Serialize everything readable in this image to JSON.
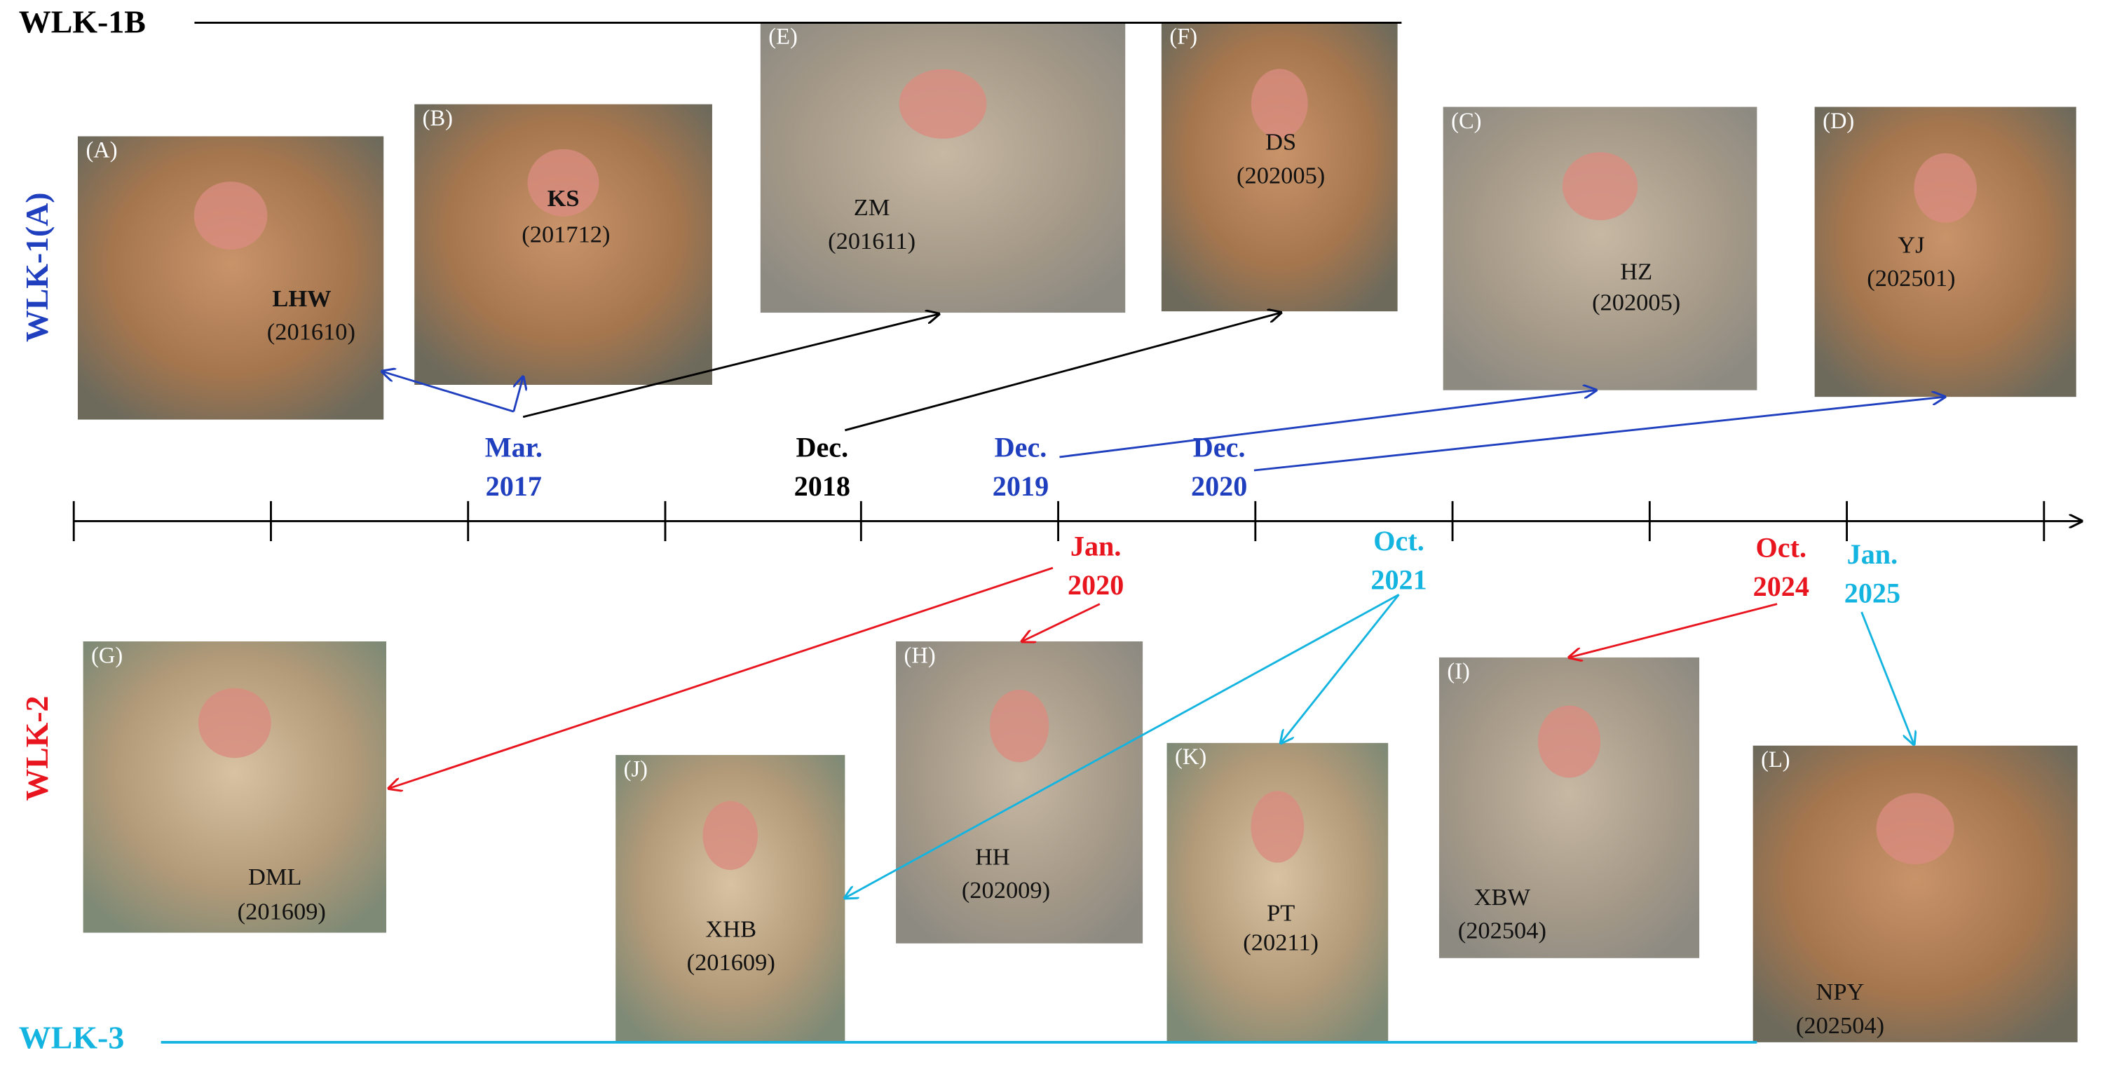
{
  "groups": [
    {
      "label": "WLK-1B"
    },
    {
      "label": "WLK-1(A)"
    },
    {
      "label": "WLK-2"
    },
    {
      "label": "WLK-3"
    }
  ],
  "dates": [
    {
      "month": "Mar.",
      "year": "2017"
    },
    {
      "month": "Dec.",
      "year": "2018"
    },
    {
      "month": "Dec.",
      "year": "2019"
    },
    {
      "month": "Dec.",
      "year": "2020"
    },
    {
      "month": "Jan.",
      "year": "2020"
    },
    {
      "month": "Oct.",
      "year": "2021"
    },
    {
      "month": "Oct.",
      "year": "2024"
    },
    {
      "month": "Jan.",
      "year": "2025"
    }
  ],
  "photos": [
    {
      "panel": "(A)",
      "name": "LHW",
      "code": "(201610)"
    },
    {
      "panel": "(B)",
      "name": "KS",
      "code": "(201712)"
    },
    {
      "panel": "(E)",
      "name": "ZM",
      "code": "(201611)"
    },
    {
      "panel": "(F)",
      "name": "DS",
      "code": "(202005)"
    },
    {
      "panel": "(C)",
      "name": "HZ",
      "code": "(202005)"
    },
    {
      "panel": "(D)",
      "name": "YJ",
      "code": "(202501)"
    },
    {
      "panel": "(G)",
      "name": "DML",
      "code": "(201609)"
    },
    {
      "panel": "(J)",
      "name": "XHB",
      "code": "(201609)"
    },
    {
      "panel": "(H)",
      "name": "HH",
      "code": "(202009)"
    },
    {
      "panel": "(K)",
      "name": "PT",
      "code": "(20211)"
    },
    {
      "panel": "(I)",
      "name": "XBW",
      "code": "(202504)"
    },
    {
      "panel": "(L)",
      "name": "NPY",
      "code": "(202504)"
    }
  ]
}
